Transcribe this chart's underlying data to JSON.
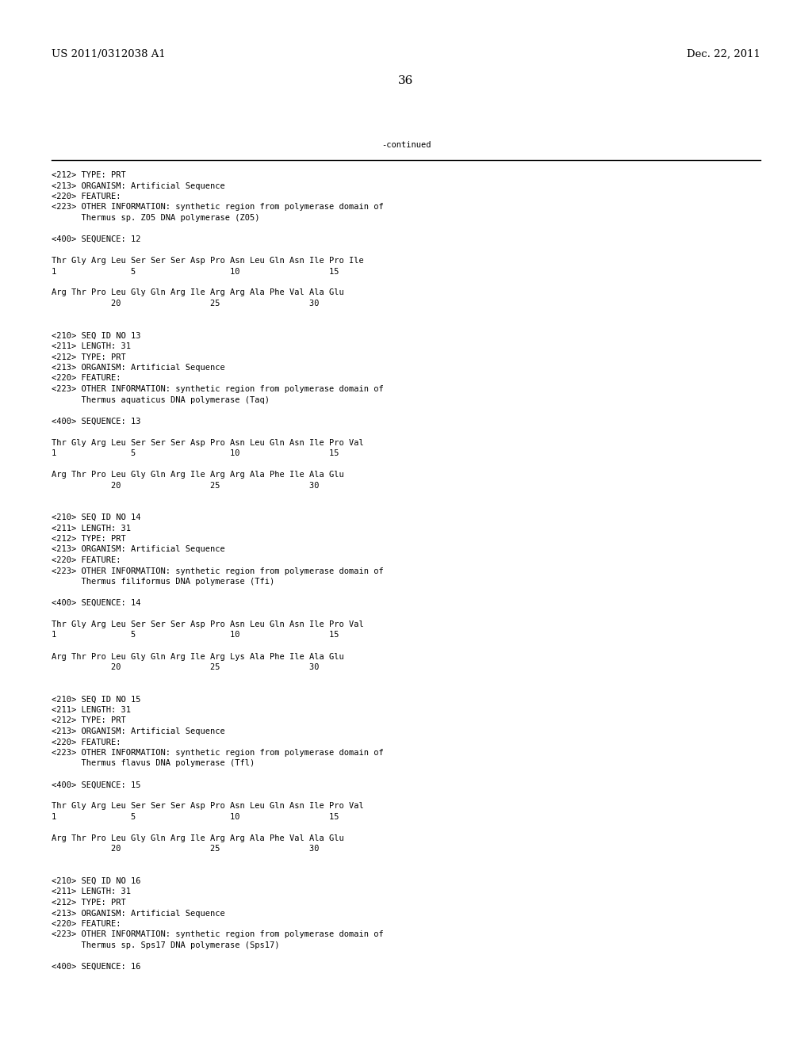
{
  "header_left": "US 2011/0312038 A1",
  "header_right": "Dec. 22, 2011",
  "page_number": "36",
  "continued_label": "-continued",
  "background_color": "#ffffff",
  "text_color": "#000000",
  "font_size_header": 9.5,
  "font_size_body": 7.5,
  "font_size_page": 11,
  "content_lines": [
    "<212> TYPE: PRT",
    "<213> ORGANISM: Artificial Sequence",
    "<220> FEATURE:",
    "<223> OTHER INFORMATION: synthetic region from polymerase domain of",
    "      Thermus sp. Z05 DNA polymerase (Z05)",
    "",
    "<400> SEQUENCE: 12",
    "",
    "Thr Gly Arg Leu Ser Ser Ser Asp Pro Asn Leu Gln Asn Ile Pro Ile",
    "1               5                   10                  15",
    "",
    "Arg Thr Pro Leu Gly Gln Arg Ile Arg Arg Ala Phe Val Ala Glu",
    "            20                  25                  30",
    "",
    "",
    "<210> SEQ ID NO 13",
    "<211> LENGTH: 31",
    "<212> TYPE: PRT",
    "<213> ORGANISM: Artificial Sequence",
    "<220> FEATURE:",
    "<223> OTHER INFORMATION: synthetic region from polymerase domain of",
    "      Thermus aquaticus DNA polymerase (Taq)",
    "",
    "<400> SEQUENCE: 13",
    "",
    "Thr Gly Arg Leu Ser Ser Ser Asp Pro Asn Leu Gln Asn Ile Pro Val",
    "1               5                   10                  15",
    "",
    "Arg Thr Pro Leu Gly Gln Arg Ile Arg Arg Ala Phe Ile Ala Glu",
    "            20                  25                  30",
    "",
    "",
    "<210> SEQ ID NO 14",
    "<211> LENGTH: 31",
    "<212> TYPE: PRT",
    "<213> ORGANISM: Artificial Sequence",
    "<220> FEATURE:",
    "<223> OTHER INFORMATION: synthetic region from polymerase domain of",
    "      Thermus filiformus DNA polymerase (Tfi)",
    "",
    "<400> SEQUENCE: 14",
    "",
    "Thr Gly Arg Leu Ser Ser Ser Asp Pro Asn Leu Gln Asn Ile Pro Val",
    "1               5                   10                  15",
    "",
    "Arg Thr Pro Leu Gly Gln Arg Ile Arg Lys Ala Phe Ile Ala Glu",
    "            20                  25                  30",
    "",
    "",
    "<210> SEQ ID NO 15",
    "<211> LENGTH: 31",
    "<212> TYPE: PRT",
    "<213> ORGANISM: Artificial Sequence",
    "<220> FEATURE:",
    "<223> OTHER INFORMATION: synthetic region from polymerase domain of",
    "      Thermus flavus DNA polymerase (Tfl)",
    "",
    "<400> SEQUENCE: 15",
    "",
    "Thr Gly Arg Leu Ser Ser Ser Asp Pro Asn Leu Gln Asn Ile Pro Val",
    "1               5                   10                  15",
    "",
    "Arg Thr Pro Leu Gly Gln Arg Ile Arg Arg Ala Phe Val Ala Glu",
    "            20                  25                  30",
    "",
    "",
    "<210> SEQ ID NO 16",
    "<211> LENGTH: 31",
    "<212> TYPE: PRT",
    "<213> ORGANISM: Artificial Sequence",
    "<220> FEATURE:",
    "<223> OTHER INFORMATION: synthetic region from polymerase domain of",
    "      Thermus sp. Sps17 DNA polymerase (Sps17)",
    "",
    "<400> SEQUENCE: 16"
  ]
}
